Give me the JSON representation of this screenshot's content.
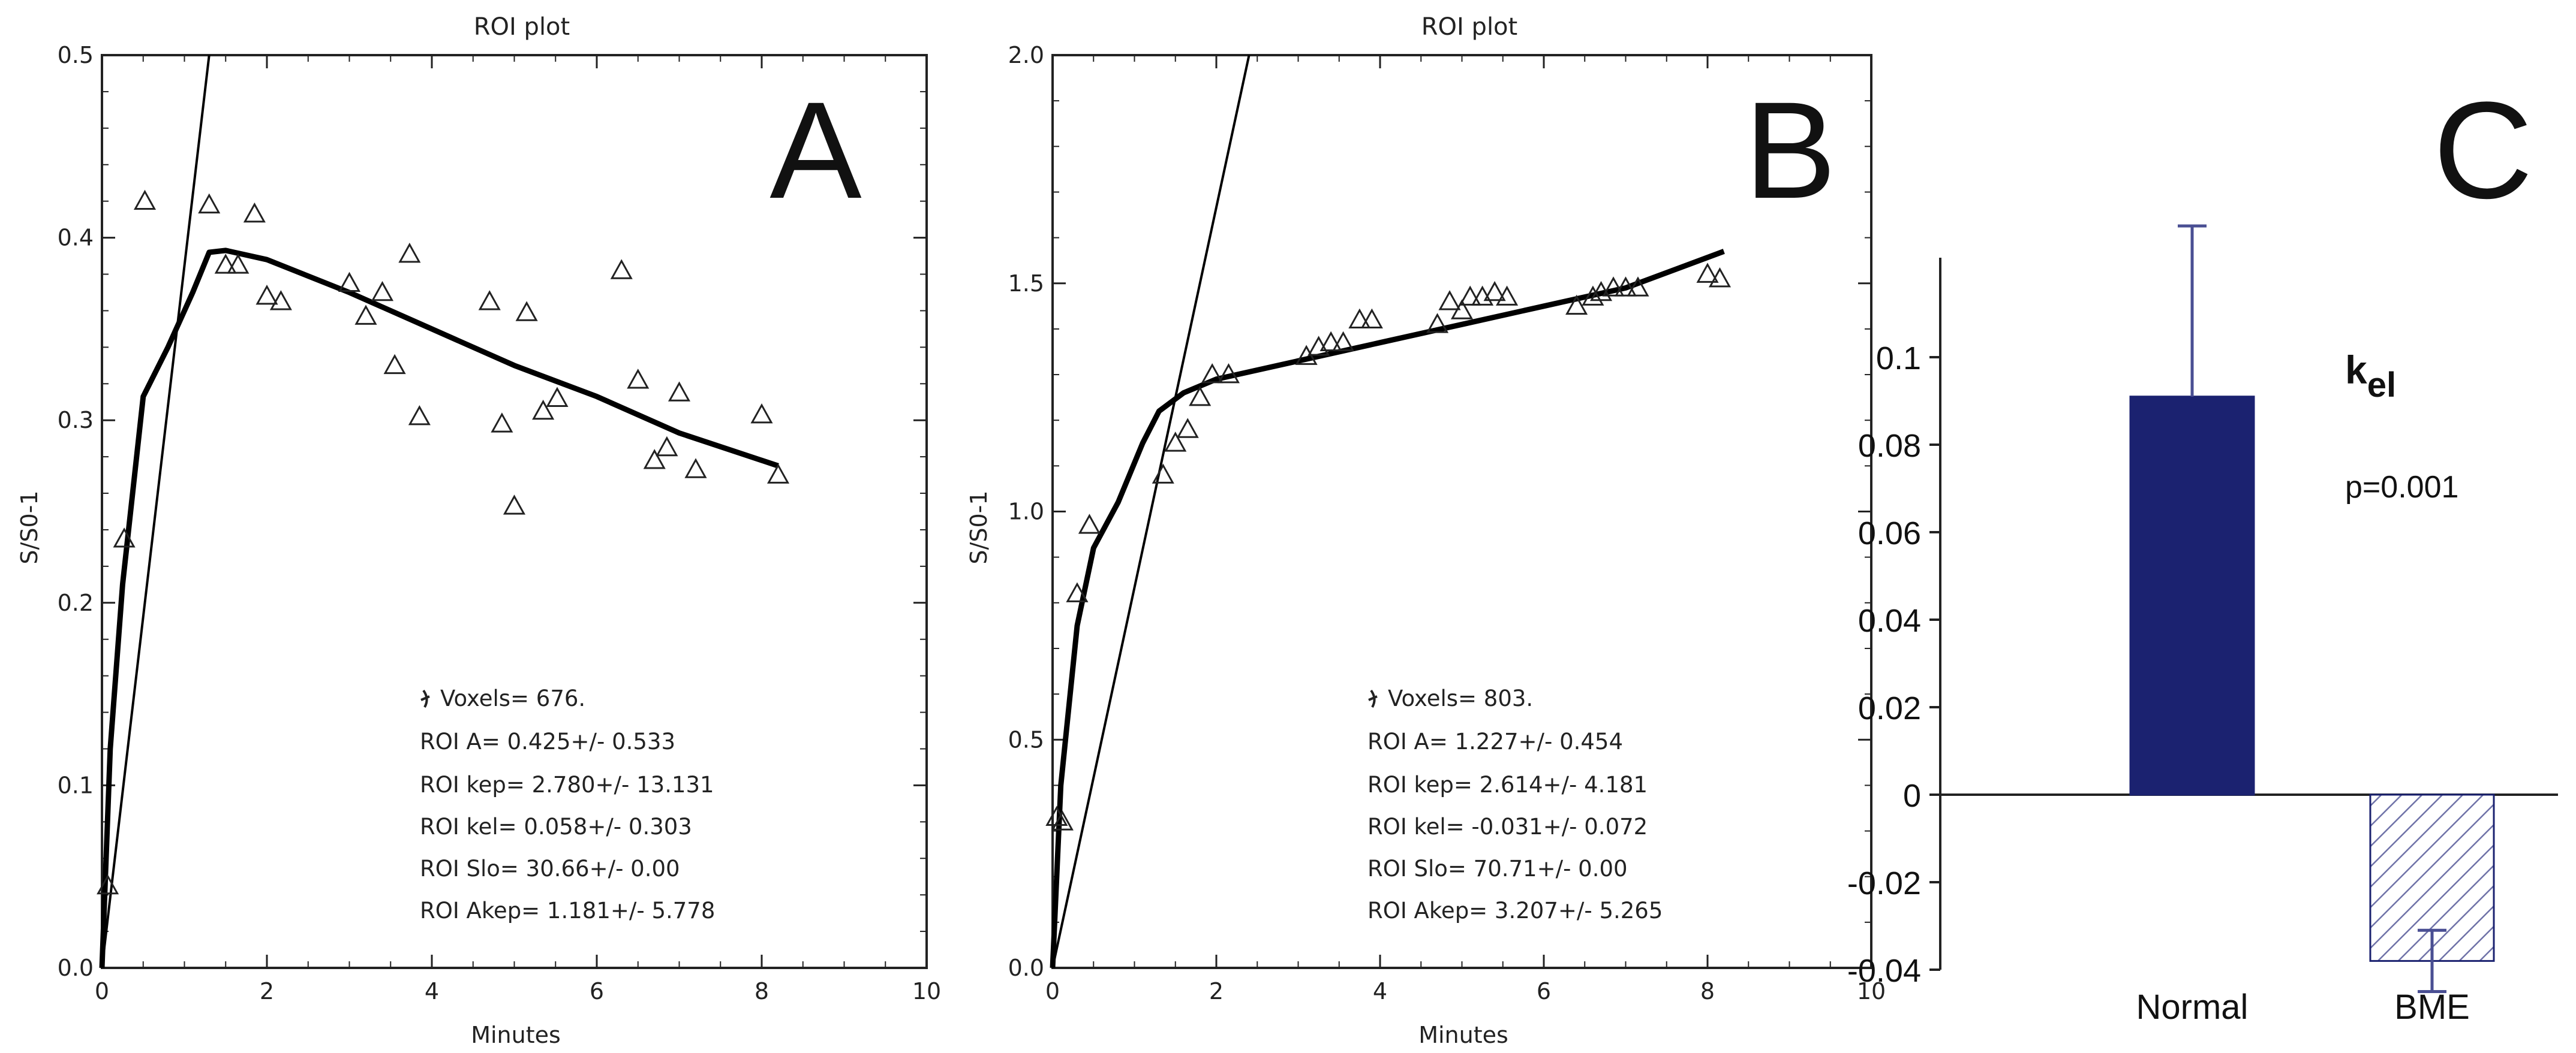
{
  "chart_data": [
    {
      "type": "scatter",
      "panel_letter": "A",
      "title": "ROI plot",
      "xlabel": "Minutes",
      "ylabel": "S/S0-1",
      "xlim": [
        0,
        10
      ],
      "ylim": [
        0,
        0.5
      ],
      "x_ticks": [
        "0",
        "2",
        "4",
        "6",
        "8",
        "10"
      ],
      "y_ticks": [
        "0.0",
        "0.1",
        "0.2",
        "0.3",
        "0.4",
        "0.5"
      ],
      "points": [
        [
          0.07,
          0.045
        ],
        [
          0.27,
          0.235
        ],
        [
          0.52,
          0.42
        ],
        [
          1.3,
          0.418
        ],
        [
          1.5,
          0.385
        ],
        [
          1.65,
          0.385
        ],
        [
          1.85,
          0.413
        ],
        [
          2.0,
          0.368
        ],
        [
          2.17,
          0.365
        ],
        [
          3.0,
          0.375
        ],
        [
          3.2,
          0.357
        ],
        [
          3.4,
          0.37
        ],
        [
          3.55,
          0.33
        ],
        [
          3.73,
          0.391
        ],
        [
          3.85,
          0.302
        ],
        [
          4.7,
          0.365
        ],
        [
          4.85,
          0.298
        ],
        [
          5.0,
          0.253
        ],
        [
          5.15,
          0.359
        ],
        [
          5.35,
          0.305
        ],
        [
          5.52,
          0.312
        ],
        [
          6.3,
          0.382
        ],
        [
          6.5,
          0.322
        ],
        [
          6.7,
          0.278
        ],
        [
          6.85,
          0.285
        ],
        [
          7.0,
          0.315
        ],
        [
          7.2,
          0.273
        ],
        [
          8.0,
          0.303
        ],
        [
          8.2,
          0.27
        ]
      ],
      "fit_curve": [
        [
          0.0,
          0.0
        ],
        [
          0.1,
          0.12
        ],
        [
          0.25,
          0.21
        ],
        [
          0.5,
          0.313
        ],
        [
          0.8,
          0.34
        ],
        [
          1.1,
          0.37
        ],
        [
          1.3,
          0.392
        ],
        [
          1.5,
          0.393
        ],
        [
          1.7,
          0.391
        ],
        [
          2.0,
          0.388
        ],
        [
          3.0,
          0.37
        ],
        [
          4.0,
          0.35
        ],
        [
          5.0,
          0.33
        ],
        [
          6.0,
          0.313
        ],
        [
          7.0,
          0.293
        ],
        [
          8.2,
          0.275
        ]
      ],
      "initial_slope_line": [
        [
          0.0,
          0.0
        ],
        [
          1.3,
          0.5
        ]
      ],
      "annotations": [
        "Voxels= 676.",
        "ROI A= 0.425+/- 0.533",
        "ROI kep= 2.780+/- 13.131",
        "ROI kel= 0.058+/- 0.303",
        "ROI Slo= 30.66+/- 0.00",
        "ROI Akep= 1.181+/- 5.778"
      ]
    },
    {
      "type": "scatter",
      "panel_letter": "B",
      "title": "ROI plot",
      "xlabel": "Minutes",
      "ylabel": "S/S0-1",
      "xlim": [
        0,
        10
      ],
      "ylim": [
        0,
        2.0
      ],
      "x_ticks": [
        "0",
        "2",
        "4",
        "6",
        "8",
        "10"
      ],
      "y_ticks": [
        "0.0",
        "0.5",
        "1.0",
        "1.5",
        "2.0"
      ],
      "points": [
        [
          0.05,
          0.33
        ],
        [
          0.12,
          0.32
        ],
        [
          0.3,
          0.82
        ],
        [
          0.45,
          0.97
        ],
        [
          1.35,
          1.08
        ],
        [
          1.5,
          1.15
        ],
        [
          1.65,
          1.18
        ],
        [
          1.8,
          1.25
        ],
        [
          1.95,
          1.3
        ],
        [
          2.15,
          1.3
        ],
        [
          3.1,
          1.34
        ],
        [
          3.25,
          1.36
        ],
        [
          3.4,
          1.37
        ],
        [
          3.55,
          1.37
        ],
        [
          3.75,
          1.42
        ],
        [
          3.9,
          1.42
        ],
        [
          4.7,
          1.41
        ],
        [
          4.85,
          1.46
        ],
        [
          5.0,
          1.44
        ],
        [
          5.1,
          1.47
        ],
        [
          5.25,
          1.47
        ],
        [
          5.4,
          1.48
        ],
        [
          5.55,
          1.47
        ],
        [
          6.4,
          1.45
        ],
        [
          6.6,
          1.47
        ],
        [
          6.7,
          1.48
        ],
        [
          6.85,
          1.49
        ],
        [
          7.0,
          1.49
        ],
        [
          7.15,
          1.49
        ],
        [
          8.0,
          1.52
        ],
        [
          8.15,
          1.51
        ]
      ],
      "fit_curve": [
        [
          0.0,
          0.0
        ],
        [
          0.1,
          0.4
        ],
        [
          0.3,
          0.75
        ],
        [
          0.5,
          0.92
        ],
        [
          0.8,
          1.02
        ],
        [
          1.1,
          1.15
        ],
        [
          1.3,
          1.22
        ],
        [
          1.6,
          1.26
        ],
        [
          2.0,
          1.29
        ],
        [
          3.0,
          1.33
        ],
        [
          4.0,
          1.37
        ],
        [
          5.0,
          1.41
        ],
        [
          6.0,
          1.45
        ],
        [
          7.0,
          1.49
        ],
        [
          8.2,
          1.57
        ]
      ],
      "initial_slope_line": [
        [
          0.0,
          0.0
        ],
        [
          2.4,
          2.0
        ]
      ],
      "annotations": [
        "Voxels= 803.",
        "ROI A= 1.227+/- 0.454",
        "ROI kep= 2.614+/- 4.181",
        "ROI kel= -0.031+/- 0.072",
        "ROI Slo= 70.71+/- 0.00",
        "ROI Akep= 3.207+/- 5.265"
      ]
    },
    {
      "type": "bar",
      "panel_letter": "C",
      "categories": [
        "Normal",
        "BME"
      ],
      "values": [
        0.091,
        -0.038
      ],
      "error_bars": [
        0.039,
        0.007
      ],
      "ylim": [
        -0.04,
        0.12
      ],
      "y_ticks": [
        "0.1",
        "0.08",
        "0.06",
        "0.04",
        "0.02",
        "0",
        "-0.02",
        "-0.04"
      ],
      "bar_fills": [
        "solid",
        "hatched"
      ],
      "label_main": "k",
      "label_sub": "el",
      "annotation": "p=0.001"
    }
  ],
  "colors": {
    "bar_navy": "#1b2270",
    "error_bar": "#4a4f93",
    "hatch": "#6f72a8",
    "plot_line": "#000000"
  }
}
